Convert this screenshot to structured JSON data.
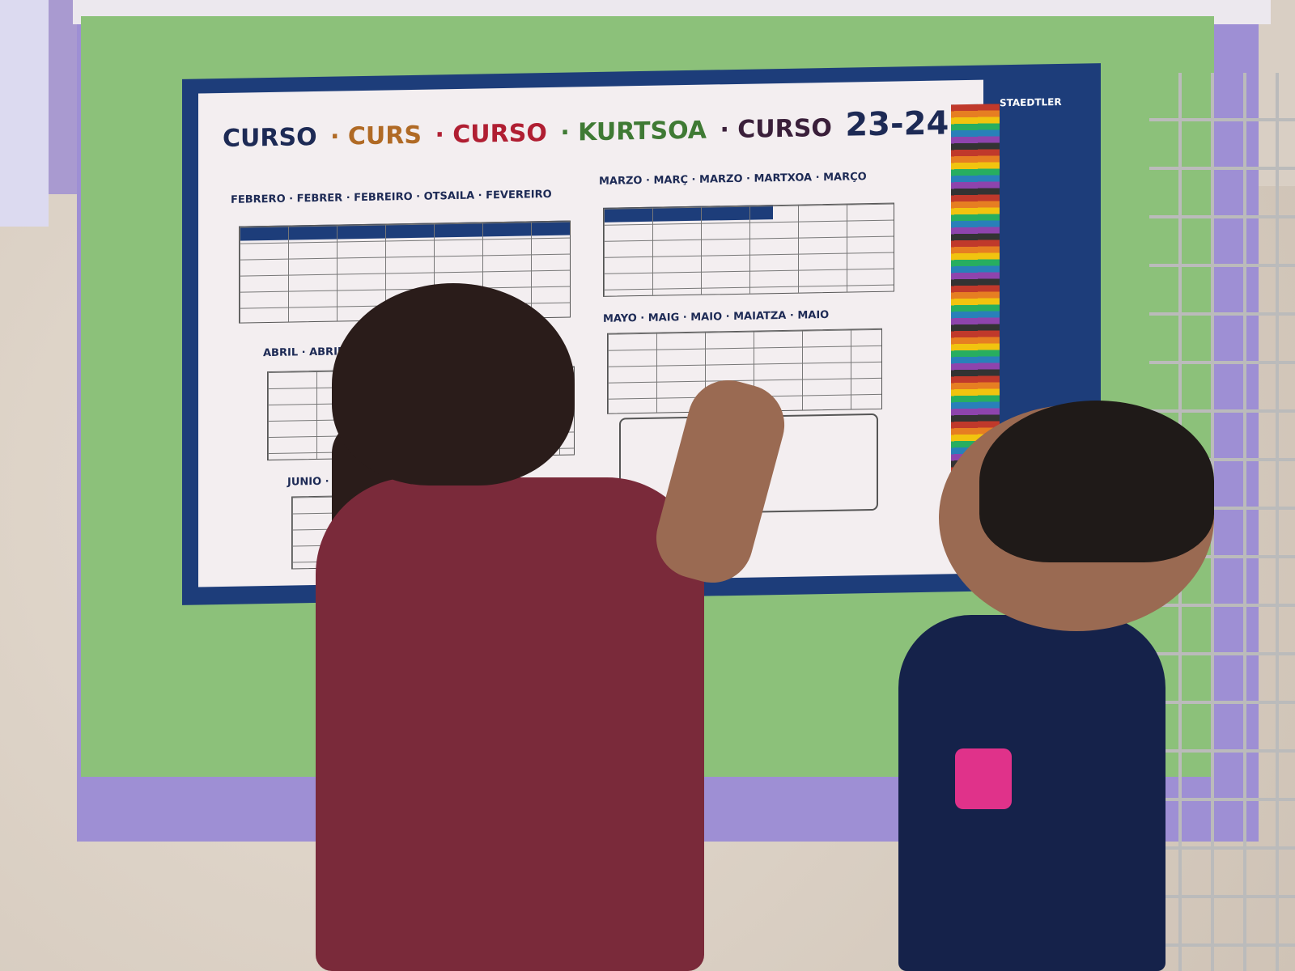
{
  "poster": {
    "title_words": [
      {
        "text": "CURSO",
        "color": "#1d2a55"
      },
      {
        "text": "· CURS",
        "color": "#b06a25"
      },
      {
        "text": "· CURSO",
        "color": "#b01e32"
      },
      {
        "text": "· KURTSOA",
        "color": "#3f7a34"
      },
      {
        "text": "· CURSO",
        "color": "#3a1f3a"
      },
      {
        "text": "23-24",
        "color": "#1d2a55"
      }
    ],
    "months": {
      "feb": "FEBRERO · FEBRER · FEBREIRO · OTSAILA · FEVEREIRO",
      "mar": "MARZO · MARÇ · MARZO · MARTXOA · MARÇO",
      "apr": "ABRIL · ABRIL · ABRIL",
      "may": "MAYO · MAIG · MAIO · MAIATZA · MAIO",
      "jun": "JUNIO · JUNY"
    },
    "brand": "STAEDTLER"
  }
}
